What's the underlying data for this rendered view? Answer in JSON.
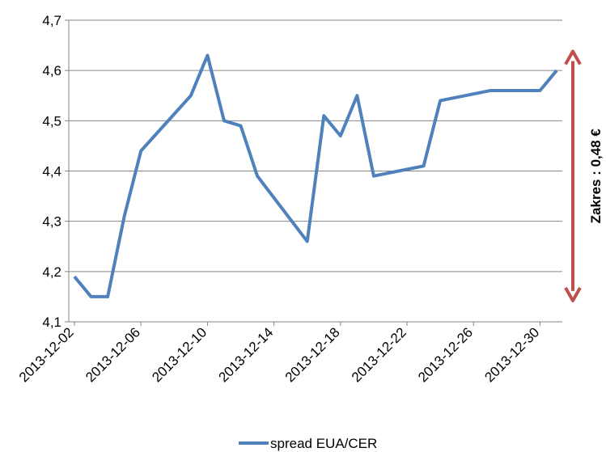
{
  "chart_data": {
    "type": "line",
    "x": [
      "2013-12-02",
      "2013-12-03",
      "2013-12-04",
      "2013-12-05",
      "2013-12-06",
      "2013-12-09",
      "2013-12-10",
      "2013-12-11",
      "2013-12-12",
      "2013-12-13",
      "2013-12-16",
      "2013-12-17",
      "2013-12-18",
      "2013-12-19",
      "2013-12-20",
      "2013-12-23",
      "2013-12-24",
      "2013-12-27",
      "2013-12-30",
      "2013-12-31"
    ],
    "series": [
      {
        "name": "spread EUA/CER",
        "color": "#4f81bd",
        "values": [
          4.19,
          4.15,
          4.15,
          4.31,
          4.44,
          4.55,
          4.63,
          4.5,
          4.49,
          4.39,
          4.26,
          4.51,
          4.47,
          4.55,
          4.39,
          4.41,
          4.54,
          4.56,
          4.56,
          4.6
        ]
      }
    ],
    "xlim": [
      "2013-12-02",
      "2013-12-31"
    ],
    "xticks": [
      "2013-12-02",
      "2013-12-06",
      "2013-12-10",
      "2013-12-14",
      "2013-12-18",
      "2013-12-22",
      "2013-12-26",
      "2013-12-30"
    ],
    "ylim": [
      4.1,
      4.7
    ],
    "yticks": [
      {
        "value": 4.1,
        "label": "4,1"
      },
      {
        "value": 4.2,
        "label": "4,2"
      },
      {
        "value": 4.3,
        "label": "4,3"
      },
      {
        "value": 4.4,
        "label": "4,4"
      },
      {
        "value": 4.5,
        "label": "4,5"
      },
      {
        "value": 4.6,
        "label": "4,6"
      },
      {
        "value": 4.7,
        "label": "4,7"
      }
    ],
    "grid": true,
    "legend": "bottom",
    "annotation": {
      "text": "Zakres : 0,48 €",
      "color": "#c0504d"
    }
  }
}
